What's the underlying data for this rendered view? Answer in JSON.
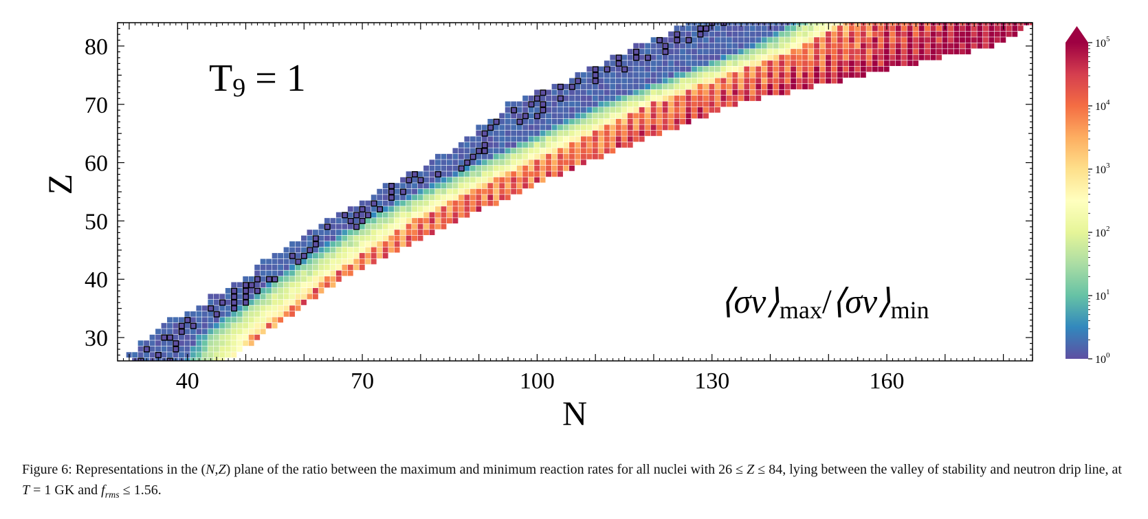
{
  "chart_data": {
    "type": "heatmap",
    "panel_label": {
      "main": "T",
      "sub": "9",
      "rest": " = 1"
    },
    "quantity_label": {
      "open": "⟨σv⟩",
      "sub1": "max",
      "slash": "/",
      "open2": "⟨σv⟩",
      "sub2": "min"
    },
    "xlabel": "N",
    "ylabel": "Z",
    "xlim": [
      28,
      185
    ],
    "ylim": [
      26,
      84
    ],
    "xticks": [
      40,
      70,
      100,
      130,
      160
    ],
    "yticks": [
      30,
      40,
      50,
      60,
      70,
      80
    ],
    "colorbar": {
      "scale": "log",
      "range": [
        1,
        100000
      ],
      "ticks": [
        {
          "base": "10",
          "exp": "0"
        },
        {
          "base": "10",
          "exp": "1"
        },
        {
          "base": "10",
          "exp": "2"
        },
        {
          "base": "10",
          "exp": "3"
        },
        {
          "base": "10",
          "exp": "4"
        },
        {
          "base": "10",
          "exp": "5"
        }
      ],
      "extend": "max",
      "colormap": "Spectral_r"
    },
    "z_min": 26,
    "z_max": 84,
    "region_boundaries": {
      "stability_N_for_Z": [
        [
          26,
          30
        ],
        [
          30,
          33
        ],
        [
          40,
          50
        ],
        [
          50,
          64
        ],
        [
          60,
          82
        ],
        [
          70,
          96
        ],
        [
          80,
          118
        ],
        [
          84,
          126
        ]
      ],
      "driplinecut_N_for_Z": [
        [
          26,
          46
        ],
        [
          30,
          52
        ],
        [
          40,
          66
        ],
        [
          50,
          86
        ],
        [
          60,
          108
        ],
        [
          70,
          134
        ],
        [
          80,
          178
        ],
        [
          84,
          185
        ]
      ],
      "transition_N_for_Z": [
        [
          26,
          46
        ],
        [
          30,
          48
        ],
        [
          40,
          61
        ],
        [
          50,
          76
        ],
        [
          60,
          96
        ],
        [
          70,
          117
        ],
        [
          80,
          143
        ],
        [
          84,
          150
        ]
      ]
    },
    "typical_log_ratio": {
      "stable_side": 0.05,
      "transition_peak": 2.0,
      "neutron_rich": 3.6,
      "far_neutron_rich": 4.5
    },
    "stable_markers": "black-outlined squares along valley of stability"
  },
  "caption": {
    "label": "Figure 6:",
    "text_1": "Representations in the (",
    "N": "N",
    "comma": ",",
    "Z": "Z",
    "text_2": ") plane of the ratio between the maximum and minimum reaction rates for all nuclei with 26 ≤ ",
    "Z2": "Z",
    "text_3": " ≤ 84, lying between the valley of stability and neutron drip line, at ",
    "T": "T",
    "text_4": " = 1 GK and ",
    "f": "f",
    "frms_sub": "rms",
    "text_5": " ≤ 1.56."
  }
}
